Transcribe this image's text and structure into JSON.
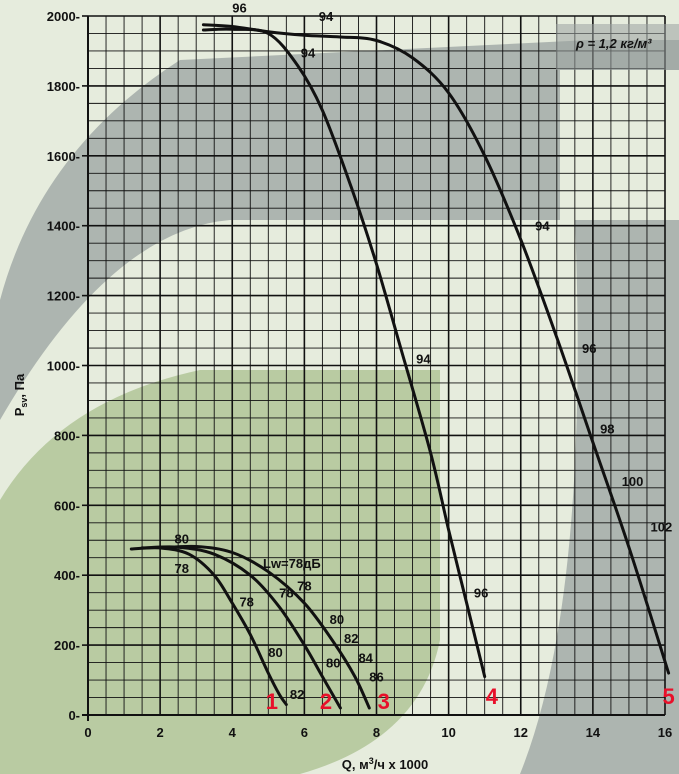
{
  "chart_data": {
    "type": "line",
    "xlabel": "Q, м³/ч x 1000",
    "ylabel": "Psv, Па",
    "xlim": [
      0,
      16
    ],
    "ylim": [
      0,
      2000
    ],
    "x_ticks": [
      "0",
      "2",
      "4",
      "6",
      "8",
      "10",
      "12",
      "14",
      "16"
    ],
    "y_ticks": [
      "0",
      "200",
      "400",
      "600",
      "800",
      "1000",
      "1200",
      "1400",
      "1600",
      "1800",
      "2000"
    ],
    "grid": true,
    "density_note": "ρ = 1,2 кг/м³",
    "lw_label": "Lw=78дБ",
    "colors": {
      "curve": "#111111",
      "curve_number": "#e8102a",
      "band_dark": "#9aa3a0",
      "band_green": "#a9c08e",
      "background": "#e6ecdd"
    },
    "series": [
      {
        "name": "1",
        "x": [
          1.2,
          2.0,
          2.8,
          3.5,
          4.0,
          4.5,
          5.0,
          5.3,
          5.5
        ],
        "y": [
          475,
          478,
          460,
          400,
          320,
          230,
          120,
          60,
          30
        ],
        "labels": [
          {
            "text": "80",
            "x": 2.6,
            "y": 505
          },
          {
            "text": "78",
            "x": 2.6,
            "y": 420
          },
          {
            "text": "78",
            "x": 4.4,
            "y": 325
          },
          {
            "text": "80",
            "x": 5.2,
            "y": 180
          },
          {
            "text": "82",
            "x": 5.8,
            "y": 60
          }
        ]
      },
      {
        "name": "2",
        "x": [
          1.5,
          2.5,
          3.5,
          4.5,
          5.3,
          6.0,
          6.5,
          7.0
        ],
        "y": [
          478,
          480,
          460,
          400,
          310,
          200,
          110,
          20
        ],
        "labels": [
          {
            "text": "78",
            "x": 5.5,
            "y": 350
          },
          {
            "text": "80",
            "x": 6.8,
            "y": 150
          }
        ]
      },
      {
        "name": "3",
        "x": [
          2.0,
          3.0,
          4.0,
          5.0,
          6.0,
          6.8,
          7.4,
          7.8
        ],
        "y": [
          478,
          482,
          465,
          410,
          320,
          210,
          110,
          20
        ],
        "labels": [
          {
            "text": "78",
            "x": 6.0,
            "y": 370
          },
          {
            "text": "80",
            "x": 6.9,
            "y": 275
          },
          {
            "text": "82",
            "x": 7.3,
            "y": 220
          },
          {
            "text": "84",
            "x": 7.7,
            "y": 165
          },
          {
            "text": "86",
            "x": 8.0,
            "y": 110
          }
        ]
      },
      {
        "name": "4",
        "x": [
          3.2,
          4.0,
          5.0,
          5.8,
          6.5,
          7.3,
          8.0,
          8.7,
          9.5,
          10.0,
          10.5,
          11.0
        ],
        "y": [
          1960,
          1962,
          1950,
          1860,
          1730,
          1510,
          1290,
          1040,
          750,
          530,
          320,
          110
        ],
        "labels": [
          {
            "text": "94",
            "x": 6.1,
            "y": 1895
          },
          {
            "text": "94",
            "x": 9.3,
            "y": 1020
          },
          {
            "text": "96",
            "x": 10.9,
            "y": 350
          }
        ]
      },
      {
        "name": "5",
        "x": [
          3.2,
          4.0,
          5.0,
          6.0,
          7.0,
          8.0,
          9.0,
          10.0,
          11.0,
          12.0,
          13.0,
          14.0,
          15.0,
          16.1
        ],
        "y": [
          1975,
          1970,
          1955,
          1945,
          1940,
          1930,
          1880,
          1780,
          1600,
          1360,
          1080,
          780,
          480,
          120
        ],
        "labels": [
          {
            "text": "96",
            "x": 4.2,
            "y": 2025
          },
          {
            "text": "94",
            "x": 6.6,
            "y": 2000
          },
          {
            "text": "94",
            "x": 12.6,
            "y": 1400
          },
          {
            "text": "96",
            "x": 13.9,
            "y": 1050
          },
          {
            "text": "98",
            "x": 14.4,
            "y": 820
          },
          {
            "text": "100",
            "x": 15.1,
            "y": 670
          },
          {
            "text": "102",
            "x": 15.9,
            "y": 540
          }
        ]
      }
    ],
    "curve_numbers": [
      {
        "text": "1",
        "x": 5.1,
        "y": 40
      },
      {
        "text": "2",
        "x": 6.6,
        "y": 40
      },
      {
        "text": "3",
        "x": 8.2,
        "y": 40
      },
      {
        "text": "4",
        "x": 11.2,
        "y": 55
      },
      {
        "text": "5",
        "x": 16.1,
        "y": 55
      }
    ]
  }
}
